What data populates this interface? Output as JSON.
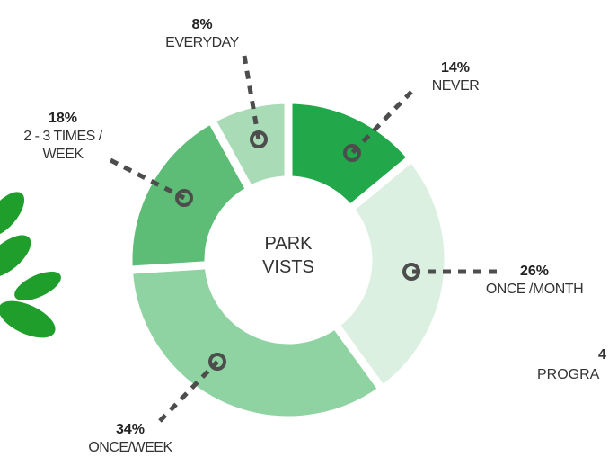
{
  "chart_data": {
    "type": "pie",
    "donut": true,
    "center_label": "PARK VISTS",
    "categories": [
      "NEVER",
      "ONCE /MONTH",
      "ONCE/WEEK",
      "2 - 3 TIMES / WEEK",
      "EVERYDAY"
    ],
    "values": [
      14,
      26,
      34,
      18,
      8
    ],
    "value_labels": [
      "14%",
      "26%",
      "34%",
      "18%",
      "8%"
    ],
    "colors": [
      "#22a84a",
      "#dcf0e2",
      "#8fd3a2",
      "#5dbd76",
      "#a9dcb6"
    ],
    "partial_labels": [
      "4",
      "PROGRA"
    ]
  }
}
